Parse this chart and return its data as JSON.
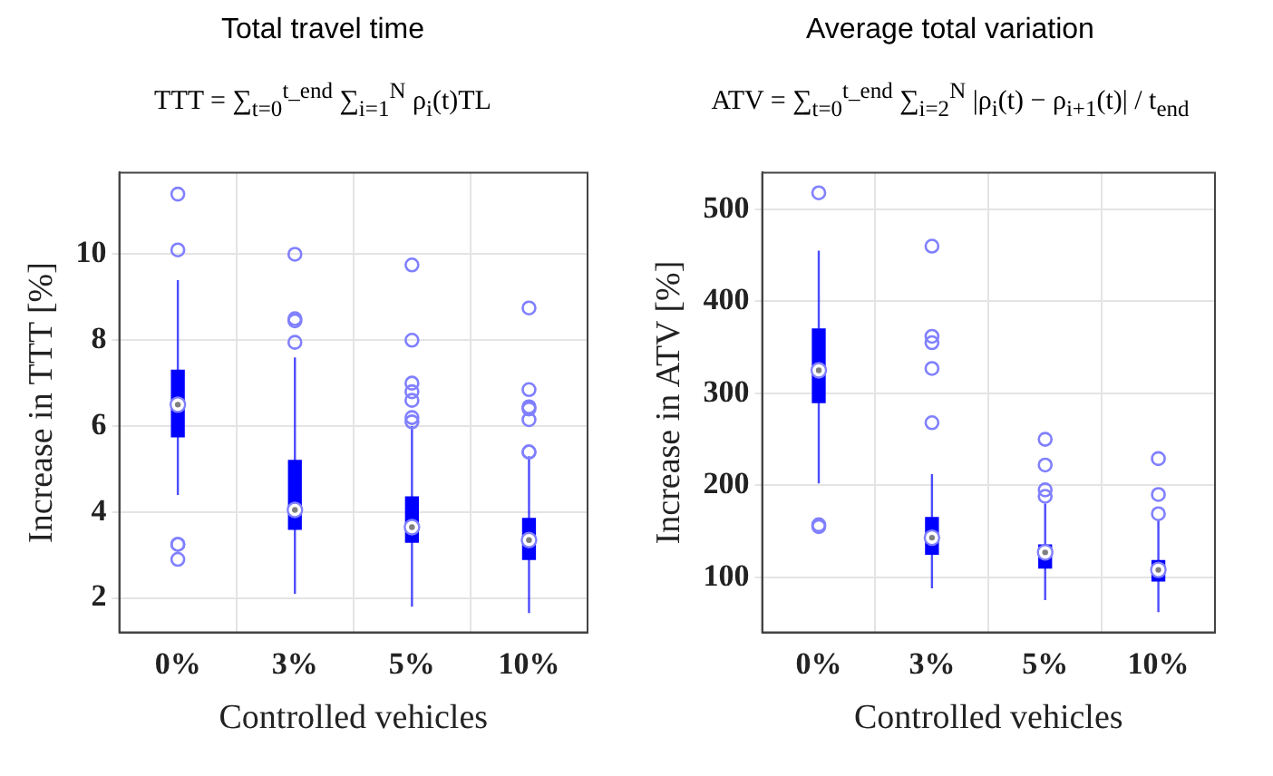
{
  "chart_data": [
    {
      "type": "box",
      "title": "Total travel time",
      "subtitle": "TTT = ∑$_{t=0}$$^{t_end}$ ∑$_{i=1}$$^{N}$ ρ$_{i}$(t)TL",
      "xlabel": "Controlled vehicles",
      "ylabel": "Increase in TTT [%]",
      "categories": [
        "0%",
        "3%",
        "5%",
        "10%"
      ],
      "color": "#0000ff",
      "ylim": [
        1.2,
        11.9
      ],
      "yticks": [
        2,
        4,
        6,
        8,
        10
      ],
      "grid": true,
      "boxes": [
        {
          "low": 4.4,
          "q1": 5.75,
          "median": 6.5,
          "q3": 7.3,
          "high": 9.4,
          "outliers": [
            11.4,
            10.1,
            3.25,
            3.25,
            2.9
          ]
        },
        {
          "low": 2.1,
          "q1": 3.6,
          "median": 4.05,
          "q3": 5.2,
          "high": 7.6,
          "outliers": [
            10.0,
            8.5,
            8.45,
            7.95
          ]
        },
        {
          "low": 1.8,
          "q1": 3.3,
          "median": 3.65,
          "q3": 4.35,
          "high": 6.0,
          "outliers": [
            9.75,
            8.0,
            7.0,
            6.8,
            6.6,
            6.2,
            6.1
          ]
        },
        {
          "low": 1.65,
          "q1": 2.9,
          "median": 3.35,
          "q3": 3.85,
          "high": 5.3,
          "outliers": [
            8.75,
            6.85,
            6.45,
            6.4,
            6.15,
            5.4,
            5.4
          ]
        }
      ]
    },
    {
      "type": "box",
      "title": "Average total variation",
      "subtitle": "ATV = ∑$_{t=0}$$^{t_end}$ ∑$_{i=2}$$^{N}$ |ρ$_{i}$(t) − ρ$_{i+1}$(t)| / t$_{end}$",
      "xlabel": "Controlled vehicles",
      "ylabel": "Increase in ATV [%]",
      "categories": [
        "0%",
        "3%",
        "5%",
        "10%"
      ],
      "color": "#0000ff",
      "ylim": [
        40,
        540
      ],
      "yticks": [
        100,
        200,
        300,
        400,
        500
      ],
      "grid": true,
      "boxes": [
        {
          "low": 202,
          "q1": 290,
          "median": 325,
          "q3": 370,
          "high": 455,
          "outliers": [
            518,
            157,
            155
          ]
        },
        {
          "low": 88,
          "q1": 125,
          "median": 143,
          "q3": 165,
          "high": 212,
          "outliers": [
            460,
            362,
            355,
            327,
            268
          ]
        },
        {
          "low": 75,
          "q1": 110,
          "median": 127,
          "q3": 135,
          "high": 180,
          "outliers": [
            250,
            222,
            195,
            188
          ]
        },
        {
          "low": 62,
          "q1": 96,
          "median": 108,
          "q3": 118,
          "high": 162,
          "outliers": [
            229,
            190,
            169
          ]
        }
      ]
    }
  ]
}
